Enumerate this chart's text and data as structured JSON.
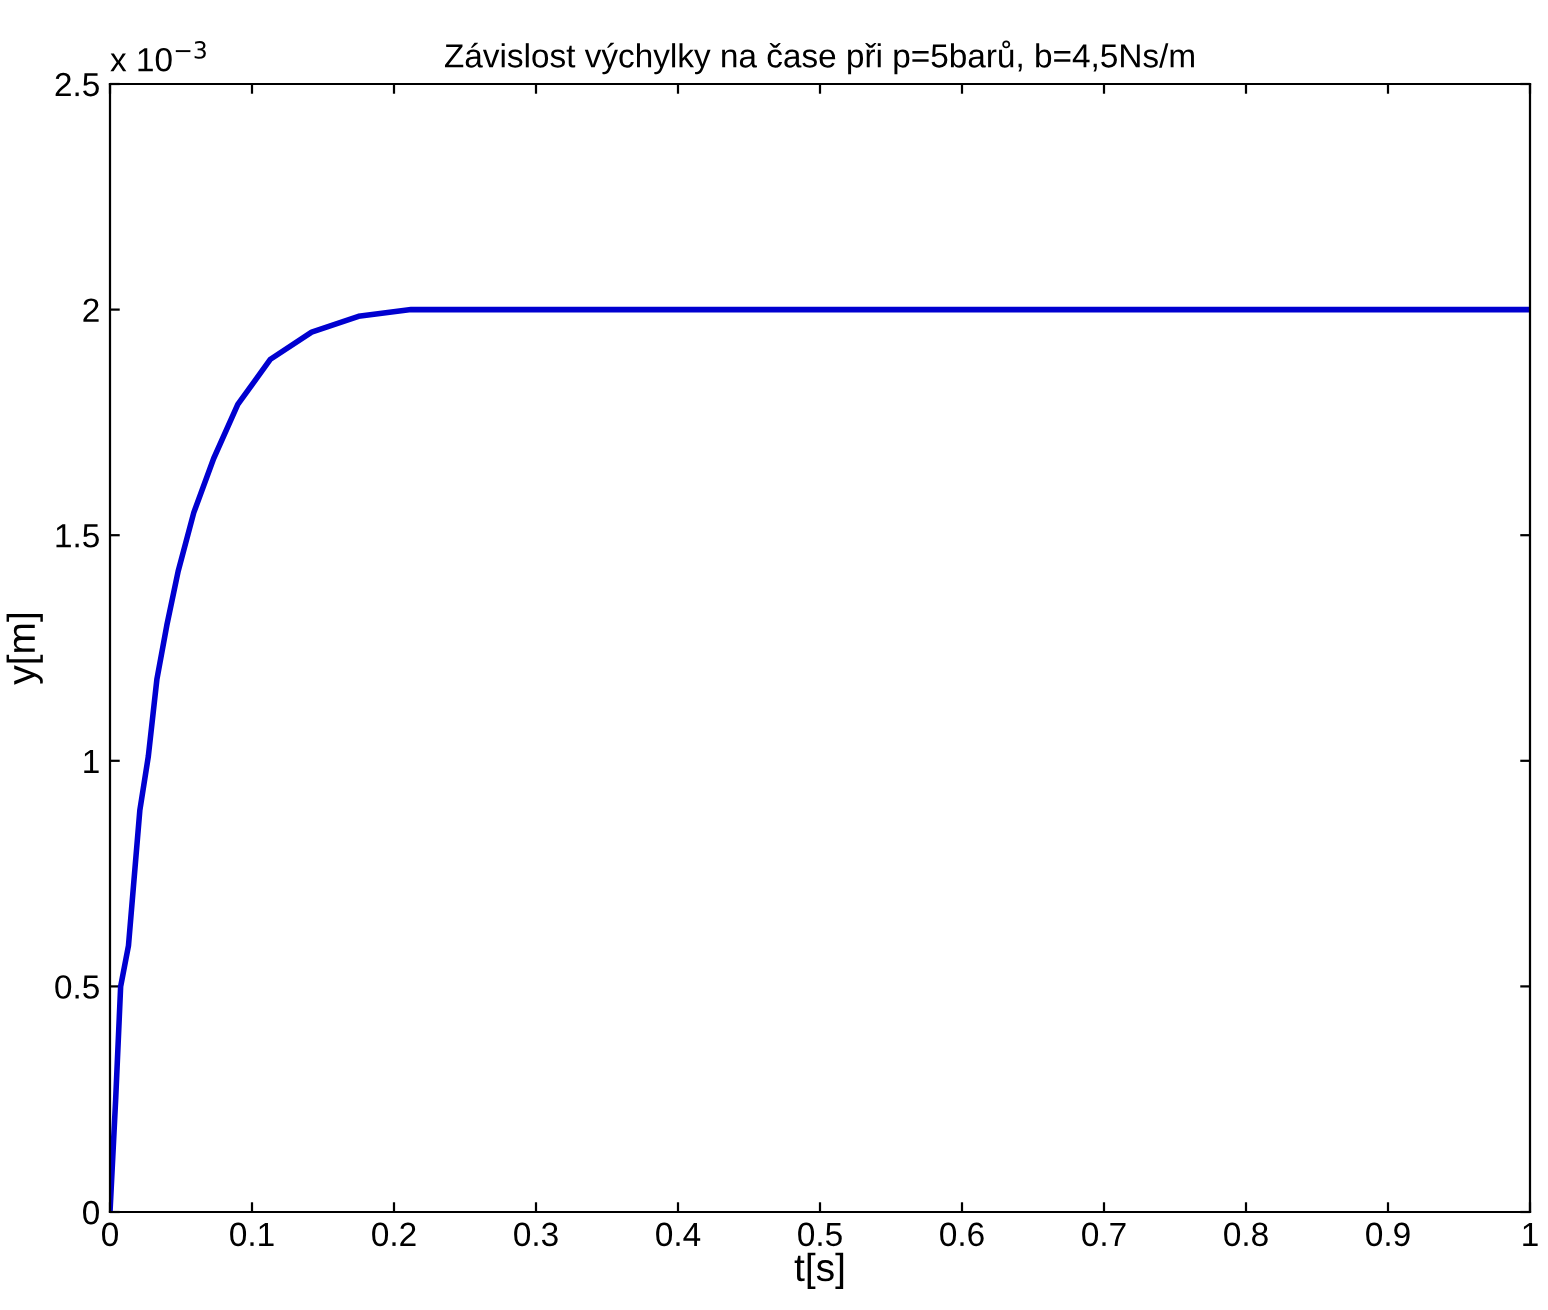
{
  "chart_data": {
    "type": "line",
    "title": "Závislost výchylky na čase při p=5barů, b=4,5Ns/m",
    "xlabel": "t[s]",
    "ylabel": "y[m]",
    "annotations": [
      "x 10$^{−3}$"
    ],
    "series": [
      {
        "color": "#0000d0",
        "x": [
          0,
          0.004,
          0.0075,
          0.013,
          0.021,
          0.027,
          0.033,
          0.04,
          0.048,
          0.059,
          0.073,
          0.09,
          0.113,
          0.142,
          0.175,
          0.212,
          0.3,
          0.5,
          1.0
        ],
        "values": [
          0,
          0.25,
          0.5,
          0.59,
          0.89,
          1.01,
          1.18,
          1.3,
          1.42,
          1.55,
          1.67,
          1.79,
          1.89,
          1.95,
          1.985,
          2.0,
          2.0,
          2.0,
          2.0
        ]
      }
    ],
    "xlim": [
      0,
      1
    ],
    "ylim": [
      0,
      2.5
    ],
    "xticks": [
      0,
      0.1,
      0.2,
      0.3,
      0.4,
      0.5,
      0.6,
      0.7,
      0.8,
      0.9,
      1
    ],
    "yticks": [
      0,
      0.5,
      1,
      1.5,
      2,
      2.5
    ],
    "grid": false,
    "legend": false,
    "marker": "none",
    "line_style": "solid"
  }
}
